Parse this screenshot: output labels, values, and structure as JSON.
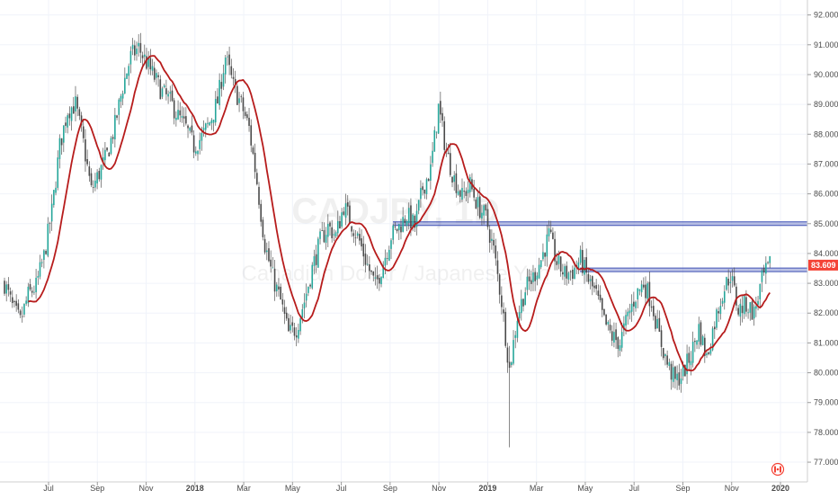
{
  "chart_data": {
    "type": "candlestick",
    "watermark": {
      "symbol": "CADJPY, 1D",
      "description": "Canadian Dollar / Japanese Yen"
    },
    "y_axis": {
      "ticks": [
        "77.000",
        "78.000",
        "79.000",
        "80.000",
        "81.000",
        "82.000",
        "83.000",
        "84.000",
        "85.000",
        "86.000",
        "87.000",
        "88.000",
        "89.000",
        "90.000",
        "91.000",
        "92.000"
      ],
      "range": [
        76.7,
        92.2
      ]
    },
    "x_axis": {
      "ticks": [
        "Jul",
        "Sep",
        "Nov",
        "2018",
        "Mar",
        "May",
        "Jul",
        "Sep",
        "Nov",
        "2019",
        "Mar",
        "May",
        "Jul",
        "Sep",
        "Nov",
        "2020"
      ]
    },
    "last_price": "83.609",
    "price_tag_color": "#f44336",
    "colors": {
      "up": "#26a69a",
      "down": "#4a4a4a",
      "wick": "#555555",
      "ma": "#b71c1c",
      "level": "#3f51b5"
    },
    "horizontal_levels": [
      {
        "value": 85.0,
        "start": "2018-09"
      },
      {
        "value": 83.45,
        "start": "2019-05"
      }
    ],
    "price_path": [
      [
        0,
        83.0
      ],
      [
        4,
        82.2
      ],
      [
        8,
        81.7
      ],
      [
        12,
        82.6
      ],
      [
        16,
        82.9
      ],
      [
        20,
        83.9
      ],
      [
        24,
        85.4
      ],
      [
        28,
        87.6
      ],
      [
        32,
        88.8
      ],
      [
        36,
        89.0
      ],
      [
        40,
        87.7
      ],
      [
        44,
        86.1
      ],
      [
        48,
        86.7
      ],
      [
        52,
        87.3
      ],
      [
        56,
        88.3
      ],
      [
        60,
        89.6
      ],
      [
        64,
        90.6
      ],
      [
        68,
        90.9
      ],
      [
        72,
        90.4
      ],
      [
        76,
        89.9
      ],
      [
        80,
        89.4
      ],
      [
        84,
        89.1
      ],
      [
        88,
        88.6
      ],
      [
        92,
        88.2
      ],
      [
        96,
        87.6
      ],
      [
        100,
        87.9
      ],
      [
        104,
        88.4
      ],
      [
        108,
        89.1
      ],
      [
        112,
        90.6
      ],
      [
        116,
        89.6
      ],
      [
        120,
        89.0
      ],
      [
        124,
        88.2
      ],
      [
        128,
        86.4
      ],
      [
        132,
        84.3
      ],
      [
        136,
        83.2
      ],
      [
        140,
        82.4
      ],
      [
        144,
        81.3
      ],
      [
        148,
        81.5
      ],
      [
        152,
        82.4
      ],
      [
        156,
        83.5
      ],
      [
        160,
        84.4
      ],
      [
        164,
        84.9
      ],
      [
        168,
        84.6
      ],
      [
        172,
        85.6
      ],
      [
        176,
        85.0
      ],
      [
        180,
        84.4
      ],
      [
        184,
        83.6
      ],
      [
        188,
        82.9
      ],
      [
        192,
        83.7
      ],
      [
        196,
        84.6
      ],
      [
        200,
        84.9
      ],
      [
        204,
        85.3
      ],
      [
        208,
        84.9
      ],
      [
        212,
        86.2
      ],
      [
        216,
        86.8
      ],
      [
        220,
        88.9
      ],
      [
        224,
        87.4
      ],
      [
        228,
        86.5
      ],
      [
        232,
        85.9
      ],
      [
        236,
        86.3
      ],
      [
        240,
        85.6
      ],
      [
        244,
        85.2
      ],
      [
        248,
        84.1
      ],
      [
        252,
        82.4
      ],
      [
        256,
        80.1
      ],
      [
        260,
        81.9
      ],
      [
        264,
        82.8
      ],
      [
        268,
        83.2
      ],
      [
        272,
        83.8
      ],
      [
        276,
        84.6
      ],
      [
        280,
        83.7
      ],
      [
        284,
        83.3
      ],
      [
        288,
        83.4
      ],
      [
        292,
        83.8
      ],
      [
        296,
        83.1
      ],
      [
        300,
        82.6
      ],
      [
        304,
        81.7
      ],
      [
        308,
        81.2
      ],
      [
        312,
        81.0
      ],
      [
        316,
        81.9
      ],
      [
        320,
        82.6
      ],
      [
        324,
        83.0
      ],
      [
        328,
        82.4
      ],
      [
        332,
        81.2
      ],
      [
        336,
        80.3
      ],
      [
        340,
        79.7
      ],
      [
        344,
        80.0
      ],
      [
        348,
        80.6
      ],
      [
        352,
        81.5
      ],
      [
        356,
        80.5
      ],
      [
        360,
        81.7
      ],
      [
        364,
        82.7
      ],
      [
        368,
        83.3
      ],
      [
        372,
        82.1
      ],
      [
        376,
        82.3
      ],
      [
        380,
        82.0
      ],
      [
        384,
        83.1
      ],
      [
        388,
        83.6
      ]
    ],
    "wick_extremes": [
      {
        "t": 256,
        "low": 77.5,
        "high": 80.9
      }
    ],
    "ma_period": 12
  }
}
